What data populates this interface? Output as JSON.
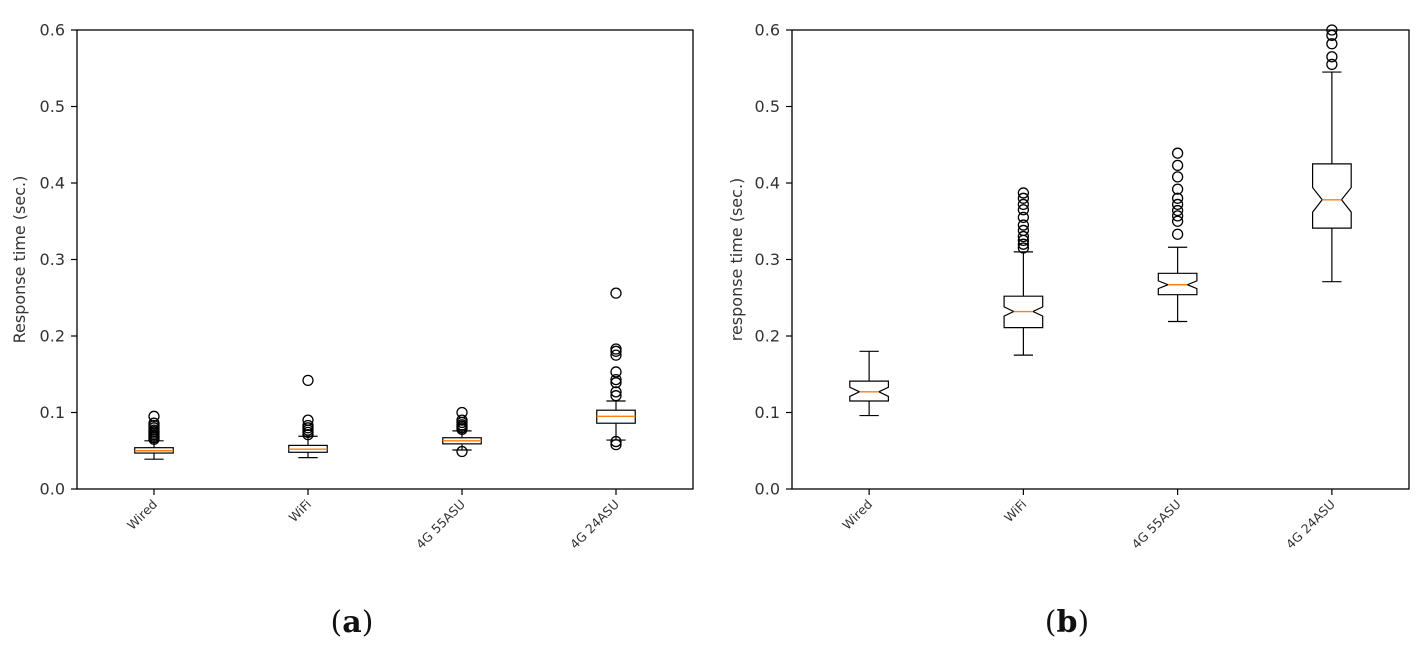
{
  "colors": {
    "box": "#000000",
    "median": "#ff7f0e",
    "frame": "#000000",
    "text": "#333333"
  },
  "chart_data": [
    {
      "type": "boxplot",
      "panel_label": "a",
      "notched": false,
      "ylabel": "Response time (sec.)",
      "xlabel": "",
      "ylim": [
        0,
        0.6
      ],
      "yticks": [
        "0.0",
        "0.1",
        "0.2",
        "0.3",
        "0.4",
        "0.5",
        "0.6"
      ],
      "categories": [
        "Wired",
        "WiFi",
        "4G 55ASU",
        "4G 24ASU"
      ],
      "boxes": [
        {
          "whisker_low": 0.039,
          "q1": 0.047,
          "median": 0.05,
          "q3": 0.054,
          "whisker_high": 0.063,
          "outliers": [
            0.065,
            0.067,
            0.069,
            0.071,
            0.073,
            0.075,
            0.077,
            0.08,
            0.083,
            0.086,
            0.095
          ]
        },
        {
          "whisker_low": 0.041,
          "q1": 0.048,
          "median": 0.052,
          "q3": 0.057,
          "whisker_high": 0.069,
          "outliers": [
            0.071,
            0.074,
            0.077,
            0.08,
            0.083,
            0.09,
            0.142
          ]
        },
        {
          "whisker_low": 0.051,
          "q1": 0.059,
          "median": 0.063,
          "q3": 0.067,
          "whisker_high": 0.076,
          "outliers": [
            0.049,
            0.078,
            0.08,
            0.082,
            0.084,
            0.087,
            0.09,
            0.1
          ]
        },
        {
          "whisker_low": 0.064,
          "q1": 0.086,
          "median": 0.095,
          "q3": 0.103,
          "whisker_high": 0.115,
          "outliers": [
            0.058,
            0.062,
            0.122,
            0.127,
            0.139,
            0.143,
            0.153,
            0.175,
            0.18,
            0.183,
            0.256
          ]
        }
      ]
    },
    {
      "type": "boxplot",
      "panel_label": "b",
      "notched": true,
      "ylabel": "response time (sec.)",
      "xlabel": "",
      "ylim": [
        0,
        0.6
      ],
      "yticks": [
        "0.0",
        "0.1",
        "0.2",
        "0.3",
        "0.4",
        "0.5",
        "0.6"
      ],
      "categories": [
        "Wired",
        "WiFi",
        "4G 55ASU",
        "4G 24ASU"
      ],
      "boxes": [
        {
          "whisker_low": 0.096,
          "q1": 0.115,
          "median": 0.127,
          "q3": 0.141,
          "whisker_high": 0.18,
          "notch_low": 0.121,
          "notch_high": 0.133,
          "outliers": []
        },
        {
          "whisker_low": 0.175,
          "q1": 0.211,
          "median": 0.232,
          "q3": 0.252,
          "whisker_high": 0.31,
          "notch_low": 0.226,
          "notch_high": 0.238,
          "outliers": [
            0.315,
            0.32,
            0.325,
            0.33,
            0.338,
            0.345,
            0.355,
            0.365,
            0.372,
            0.38,
            0.387
          ]
        },
        {
          "whisker_low": 0.219,
          "q1": 0.254,
          "median": 0.267,
          "q3": 0.282,
          "whisker_high": 0.316,
          "notch_low": 0.262,
          "notch_high": 0.272,
          "outliers": [
            0.333,
            0.35,
            0.357,
            0.364,
            0.372,
            0.38,
            0.392,
            0.408,
            0.423,
            0.439
          ]
        },
        {
          "whisker_low": 0.271,
          "q1": 0.341,
          "median": 0.378,
          "q3": 0.425,
          "whisker_high": 0.545,
          "notch_low": 0.362,
          "notch_high": 0.394,
          "outliers": [
            0.555,
            0.565,
            0.582,
            0.593,
            0.6
          ]
        }
      ]
    }
  ]
}
